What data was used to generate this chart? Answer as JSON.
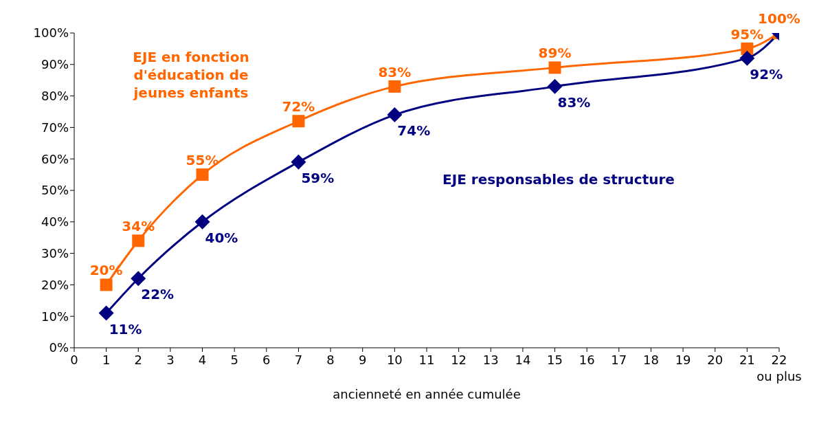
{
  "chart_data": {
    "type": "line",
    "xlabel": "ancienneté en année cumulée",
    "xlim": [
      0,
      22
    ],
    "xticks": [
      0,
      1,
      2,
      3,
      4,
      5,
      6,
      7,
      8,
      9,
      10,
      11,
      12,
      13,
      14,
      15,
      16,
      17,
      18,
      19,
      20,
      21,
      {
        "value": 22,
        "label": "22\nou plus"
      }
    ],
    "ylim": [
      0,
      100
    ],
    "yticks": [
      {
        "value": 0,
        "label": "0%"
      },
      {
        "value": 10,
        "label": "10%"
      },
      {
        "value": 20,
        "label": "20%"
      },
      {
        "value": 30,
        "label": "30%"
      },
      {
        "value": 40,
        "label": "40%"
      },
      {
        "value": 50,
        "label": "50%"
      },
      {
        "value": 60,
        "label": "60%"
      },
      {
        "value": 70,
        "label": "70%"
      },
      {
        "value": 80,
        "label": "80%"
      },
      {
        "value": 90,
        "label": "90%"
      },
      {
        "value": 100,
        "label": "100%"
      }
    ],
    "grid": false,
    "legend": false,
    "series": [
      {
        "name": "EJE en fonction d'éducation de jeunes enfants",
        "color": "#ff6600",
        "marker": "square",
        "x": [
          1,
          2,
          4,
          7,
          10,
          15,
          21,
          22
        ],
        "values": [
          20,
          34,
          55,
          72,
          83,
          89,
          95,
          100
        ],
        "value_labels": [
          "20%",
          "34%",
          "55%",
          "72%",
          "83%",
          "89%",
          "95%",
          "100%"
        ]
      },
      {
        "name": "EJE responsables de structure",
        "color": "#000080",
        "marker": "diamond",
        "x": [
          1,
          2,
          4,
          7,
          10,
          15,
          21,
          22
        ],
        "values": [
          11,
          22,
          40,
          59,
          74,
          83,
          92,
          100
        ],
        "value_labels": [
          "11%",
          "22%",
          "40%",
          "59%",
          "74%",
          "83%",
          "92%",
          null
        ]
      }
    ]
  }
}
